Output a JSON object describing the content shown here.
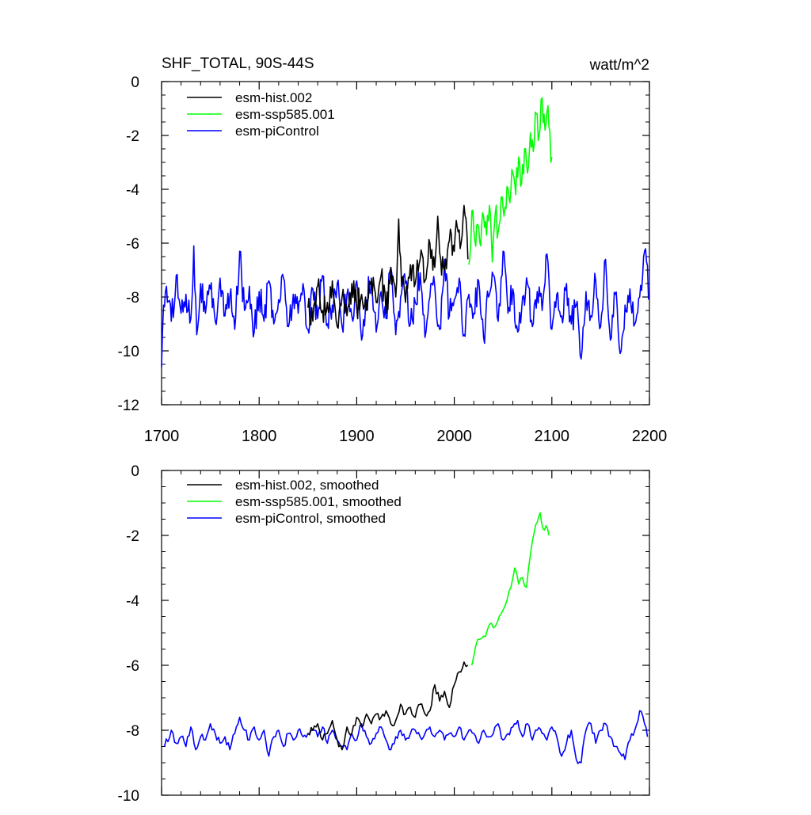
{
  "header": {
    "title": "SHF_TOTAL, 90S-44S",
    "units": "watt/m^2"
  },
  "chart_data": [
    {
      "type": "line",
      "panel": "top",
      "title": "SHF_TOTAL, 90S-44S",
      "units": "watt/m^2",
      "xlabel": "",
      "ylabel": "",
      "xlim": [
        1700,
        2200
      ],
      "ylim": [
        -12,
        0
      ],
      "xticks": [
        1700,
        1800,
        1900,
        2000,
        2100,
        2200
      ],
      "xtick_labels": [
        "1700",
        "1800",
        "1900",
        "2000",
        "2100",
        "2200"
      ],
      "yticks": [
        -12,
        -10,
        -8,
        -6,
        -4,
        -2,
        0
      ],
      "ytick_labels": [
        "-12",
        "-10",
        "-8",
        "-6",
        "-4",
        "-2",
        "0"
      ],
      "legend_position": "top-left",
      "series": [
        {
          "name": "esm-piControl",
          "color": "#0000ff",
          "stroke": "noisy",
          "x": [
            1700,
            1702,
            1705,
            1710,
            1715,
            1720,
            1725,
            1730,
            1733,
            1736,
            1740,
            1745,
            1750,
            1755,
            1760,
            1765,
            1770,
            1775,
            1780,
            1785,
            1790,
            1795,
            1800,
            1805,
            1810,
            1815,
            1820,
            1825,
            1830,
            1835,
            1840,
            1845,
            1850,
            1855,
            1860,
            1865,
            1870,
            1875,
            1880,
            1885,
            1890,
            1895,
            1900,
            1905,
            1910,
            1915,
            1920,
            1925,
            1930,
            1935,
            1940,
            1945,
            1950,
            1955,
            1960,
            1965,
            1970,
            1975,
            1980,
            1985,
            1990,
            1995,
            2000,
            2005,
            2010,
            2015,
            2020,
            2025,
            2030,
            2035,
            2040,
            2045,
            2050,
            2055,
            2060,
            2065,
            2070,
            2075,
            2080,
            2085,
            2090,
            2095,
            2100,
            2105,
            2110,
            2115,
            2120,
            2125,
            2130,
            2135,
            2140,
            2145,
            2150,
            2155,
            2160,
            2165,
            2170,
            2175,
            2180,
            2185,
            2190,
            2195,
            2200
          ],
          "y": [
            -10.6,
            -8.3,
            -7.6,
            -8.9,
            -7.2,
            -8.6,
            -7.9,
            -8.8,
            -6.1,
            -9.4,
            -7.5,
            -8.6,
            -7.7,
            -8.9,
            -7.3,
            -8.7,
            -8.0,
            -9.2,
            -6.3,
            -8.5,
            -7.6,
            -9.3,
            -7.8,
            -8.9,
            -7.4,
            -9.0,
            -8.1,
            -7.3,
            -9.1,
            -7.9,
            -8.6,
            -7.5,
            -9.2,
            -7.7,
            -8.8,
            -7.2,
            -9.0,
            -8.3,
            -7.5,
            -9.1,
            -7.9,
            -8.7,
            -7.4,
            -9.6,
            -8.1,
            -7.3,
            -9.3,
            -7.8,
            -8.8,
            -6.9,
            -9.4,
            -8.0,
            -7.5,
            -9.0,
            -8.2,
            -7.1,
            -9.5,
            -8.0,
            -7.6,
            -9.2,
            -6.6,
            -8.7,
            -8.1,
            -7.3,
            -9.4,
            -7.9,
            -8.6,
            -7.4,
            -9.5,
            -8.0,
            -7.2,
            -8.9,
            -6.3,
            -8.6,
            -7.7,
            -9.3,
            -8.0,
            -7.5,
            -9.1,
            -7.8,
            -8.5,
            -6.4,
            -9.2,
            -7.9,
            -8.7,
            -7.5,
            -9.0,
            -8.3,
            -10.3,
            -7.8,
            -8.7,
            -7.4,
            -9.1,
            -6.6,
            -9.6,
            -7.9,
            -10.1,
            -8.3,
            -7.7,
            -9.0,
            -8.0,
            -6.3,
            -8.0
          ]
        },
        {
          "name": "esm-hist.002",
          "color": "#000000",
          "stroke": "noisy",
          "x": [
            1850,
            1855,
            1860,
            1865,
            1870,
            1875,
            1880,
            1885,
            1890,
            1895,
            1900,
            1905,
            1910,
            1915,
            1920,
            1925,
            1930,
            1935,
            1940,
            1943,
            1946,
            1950,
            1955,
            1960,
            1965,
            1970,
            1975,
            1980,
            1983,
            1986,
            1990,
            1995,
            2000,
            2003,
            2006,
            2010,
            2014
          ],
          "y": [
            -8.4,
            -8.9,
            -7.6,
            -8.5,
            -8.2,
            -7.4,
            -9.1,
            -8.0,
            -8.7,
            -7.5,
            -8.4,
            -7.9,
            -8.5,
            -7.4,
            -8.2,
            -7.2,
            -8.6,
            -6.9,
            -8.0,
            -5.1,
            -7.6,
            -8.2,
            -6.8,
            -7.5,
            -6.6,
            -7.4,
            -6.0,
            -6.9,
            -5.0,
            -6.6,
            -7.0,
            -5.9,
            -6.3,
            -5.4,
            -6.2,
            -4.6,
            -6.6
          ]
        },
        {
          "name": "esm-ssp585.001",
          "color": "#00ff00",
          "stroke": "noisy",
          "x": [
            2015,
            2018,
            2021,
            2024,
            2027,
            2030,
            2033,
            2036,
            2039,
            2042,
            2045,
            2048,
            2051,
            2054,
            2057,
            2060,
            2063,
            2066,
            2069,
            2072,
            2075,
            2078,
            2081,
            2084,
            2087,
            2090,
            2093,
            2096,
            2099,
            2100
          ],
          "y": [
            -6.8,
            -4.8,
            -5.9,
            -5.3,
            -6.1,
            -5.0,
            -5.7,
            -4.6,
            -6.7,
            -4.9,
            -5.6,
            -4.3,
            -5.0,
            -3.9,
            -4.5,
            -3.4,
            -4.2,
            -2.8,
            -3.8,
            -2.5,
            -3.4,
            -1.9,
            -2.6,
            -1.2,
            -2.0,
            -0.6,
            -1.8,
            -0.9,
            -3.0,
            -2.8
          ]
        }
      ]
    },
    {
      "type": "line",
      "panel": "bottom",
      "title": "",
      "xlabel": "",
      "ylabel": "",
      "xlim": [
        1700,
        2200
      ],
      "ylim": [
        -10,
        0
      ],
      "xticks": [
        1700,
        1800,
        1900,
        2000,
        2100,
        2200
      ],
      "yticks": [
        -10,
        -8,
        -6,
        -4,
        -2,
        0
      ],
      "ytick_labels": [
        "-10",
        "-8",
        "-6",
        "-4",
        "-2",
        "0"
      ],
      "legend_position": "top-left",
      "series": [
        {
          "name": "esm-piControl, smoothed",
          "color": "#0000ff",
          "stroke": "smooth",
          "x": [
            1703,
            1710,
            1715,
            1720,
            1725,
            1730,
            1735,
            1740,
            1745,
            1750,
            1755,
            1760,
            1765,
            1770,
            1775,
            1780,
            1785,
            1790,
            1795,
            1800,
            1805,
            1810,
            1815,
            1820,
            1825,
            1830,
            1835,
            1840,
            1845,
            1850,
            1855,
            1860,
            1865,
            1870,
            1875,
            1880,
            1885,
            1890,
            1895,
            1900,
            1905,
            1910,
            1915,
            1920,
            1925,
            1930,
            1935,
            1940,
            1945,
            1950,
            1955,
            1960,
            1965,
            1970,
            1975,
            1980,
            1985,
            1990,
            1995,
            2000,
            2005,
            2010,
            2015,
            2020,
            2025,
            2030,
            2035,
            2040,
            2045,
            2050,
            2055,
            2060,
            2065,
            2070,
            2075,
            2080,
            2085,
            2090,
            2095,
            2100,
            2105,
            2110,
            2115,
            2120,
            2125,
            2130,
            2135,
            2140,
            2145,
            2150,
            2155,
            2160,
            2165,
            2170,
            2175,
            2180,
            2185,
            2190,
            2195,
            2198
          ],
          "y": [
            -8.5,
            -8.0,
            -8.4,
            -8.2,
            -8.5,
            -7.9,
            -8.6,
            -8.2,
            -8.3,
            -7.8,
            -8.1,
            -8.4,
            -8.2,
            -8.6,
            -8.1,
            -7.6,
            -8.0,
            -8.3,
            -7.9,
            -8.3,
            -8.0,
            -8.8,
            -8.2,
            -8.0,
            -8.5,
            -8.1,
            -8.3,
            -8.0,
            -8.2,
            -8.1,
            -8.0,
            -8.2,
            -7.9,
            -8.4,
            -8.0,
            -8.3,
            -8.5,
            -8.6,
            -8.1,
            -8.3,
            -7.8,
            -8.2,
            -8.4,
            -8.1,
            -7.9,
            -8.3,
            -8.6,
            -8.2,
            -8.0,
            -8.3,
            -8.1,
            -8.0,
            -8.2,
            -8.1,
            -7.9,
            -8.2,
            -8.0,
            -8.3,
            -8.1,
            -8.2,
            -7.9,
            -8.3,
            -8.0,
            -8.1,
            -8.4,
            -8.0,
            -8.2,
            -8.1,
            -7.8,
            -8.3,
            -8.1,
            -7.9,
            -7.7,
            -8.2,
            -7.8,
            -8.3,
            -8.0,
            -8.1,
            -8.3,
            -7.9,
            -8.2,
            -8.8,
            -8.4,
            -8.0,
            -8.9,
            -9.0,
            -8.0,
            -7.8,
            -8.4,
            -8.0,
            -7.8,
            -8.2,
            -8.5,
            -8.7,
            -8.9,
            -8.3,
            -8.0,
            -7.4,
            -7.8,
            -8.2
          ]
        },
        {
          "name": "esm-hist.002, smoothed",
          "color": "#000000",
          "stroke": "smooth",
          "x": [
            1850,
            1855,
            1860,
            1865,
            1870,
            1875,
            1880,
            1885,
            1890,
            1895,
            1900,
            1905,
            1910,
            1915,
            1920,
            1925,
            1930,
            1935,
            1940,
            1945,
            1950,
            1955,
            1960,
            1965,
            1970,
            1975,
            1980,
            1985,
            1990,
            1995,
            2000,
            2005,
            2010,
            2014
          ],
          "y": [
            -8.1,
            -8.0,
            -7.8,
            -8.3,
            -8.1,
            -7.7,
            -8.3,
            -8.6,
            -7.9,
            -8.1,
            -7.6,
            -7.9,
            -7.5,
            -7.8,
            -7.5,
            -7.6,
            -7.4,
            -7.8,
            -7.7,
            -7.2,
            -7.5,
            -7.3,
            -7.6,
            -7.2,
            -7.5,
            -7.4,
            -6.6,
            -7.1,
            -6.8,
            -7.3,
            -6.6,
            -6.2,
            -5.9,
            -6.0
          ]
        },
        {
          "name": "esm-ssp585.001, smoothed",
          "color": "#00ff00",
          "stroke": "smooth",
          "x": [
            2018,
            2022,
            2026,
            2030,
            2034,
            2038,
            2042,
            2046,
            2050,
            2054,
            2058,
            2062,
            2066,
            2070,
            2074,
            2078,
            2082,
            2085,
            2088,
            2091,
            2094,
            2097
          ],
          "y": [
            -6.0,
            -5.4,
            -5.2,
            -5.1,
            -4.9,
            -4.7,
            -4.8,
            -4.5,
            -4.3,
            -4.0,
            -3.6,
            -3.0,
            -3.5,
            -3.3,
            -3.6,
            -2.6,
            -1.9,
            -1.6,
            -1.3,
            -1.8,
            -1.7,
            -2.0
          ]
        }
      ]
    }
  ]
}
